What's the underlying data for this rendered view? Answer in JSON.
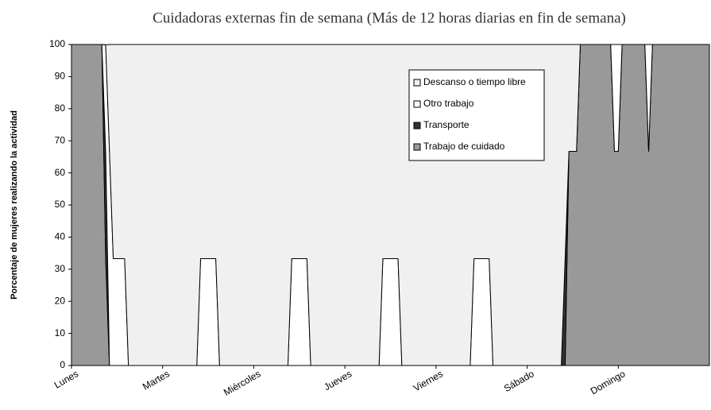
{
  "chart_data": {
    "type": "stacked_area",
    "title": "Cuidadoras externas fin de semana (Más de 12 horas diarias en fin de semana)",
    "y_label": "Porcentaje de mujeres realizando la actividad",
    "x": [
      0,
      8,
      9,
      10,
      11,
      14,
      15,
      33,
      34,
      38,
      39,
      57,
      58,
      62,
      63,
      81,
      82,
      86,
      87,
      105,
      106,
      110,
      111,
      129,
      130,
      131,
      133,
      134,
      142,
      143,
      144,
      145,
      151,
      152,
      153,
      168
    ],
    "xlim": [
      0,
      168
    ],
    "xticks": [
      {
        "value": 0,
        "label": "Lunes"
      },
      {
        "value": 24,
        "label": "Martes"
      },
      {
        "value": 48,
        "label": "Miércoles"
      },
      {
        "value": 72,
        "label": "Jueves"
      },
      {
        "value": 96,
        "label": "Viernes"
      },
      {
        "value": 120,
        "label": "Sábado"
      },
      {
        "value": 144,
        "label": "Domingo"
      }
    ],
    "ylim": [
      0,
      100
    ],
    "yticks": [
      0,
      10,
      20,
      30,
      40,
      50,
      60,
      70,
      80,
      90,
      100
    ],
    "legend": "upper right",
    "series": [
      {
        "name": "Descanso o tiempo libre",
        "color": "#f0f0f0",
        "values": [
          0,
          0,
          0,
          33.3,
          66.7,
          66.7,
          100,
          100,
          66.7,
          66.7,
          100,
          100,
          66.7,
          66.7,
          100,
          100,
          66.7,
          66.7,
          100,
          100,
          66.7,
          66.7,
          100,
          100,
          66.7,
          33.3,
          33.3,
          0,
          0,
          0,
          0,
          0,
          0,
          0,
          0,
          0
        ]
      },
      {
        "name": "Otro trabajo",
        "color": "#ffffff",
        "values": [
          0,
          0,
          33.3,
          66.7,
          33.3,
          33.3,
          0,
          0,
          33.3,
          33.3,
          0,
          0,
          33.3,
          33.3,
          0,
          0,
          33.3,
          33.3,
          0,
          0,
          33.3,
          33.3,
          0,
          0,
          0,
          0,
          0,
          0,
          0,
          33.3,
          33.3,
          0,
          0,
          33.3,
          0,
          0
        ]
      },
      {
        "name": "Transporte",
        "color": "#333333",
        "values": [
          0,
          0,
          33.3,
          0,
          0,
          0,
          0,
          0,
          0,
          0,
          0,
          0,
          0,
          0,
          0,
          0,
          0,
          0,
          0,
          0,
          0,
          0,
          0,
          0,
          33.3,
          0,
          0,
          0,
          0,
          0,
          0,
          0,
          0,
          0,
          0,
          0
        ]
      },
      {
        "name": "Trabajo de cuidado",
        "color": "#999999",
        "values": [
          100,
          100,
          33.3,
          0,
          0,
          0,
          0,
          0,
          0,
          0,
          0,
          0,
          0,
          0,
          0,
          0,
          0,
          0,
          0,
          0,
          0,
          0,
          0,
          0,
          0,
          66.7,
          66.7,
          100,
          100,
          66.7,
          66.7,
          100,
          100,
          66.7,
          100,
          100
        ]
      }
    ]
  }
}
